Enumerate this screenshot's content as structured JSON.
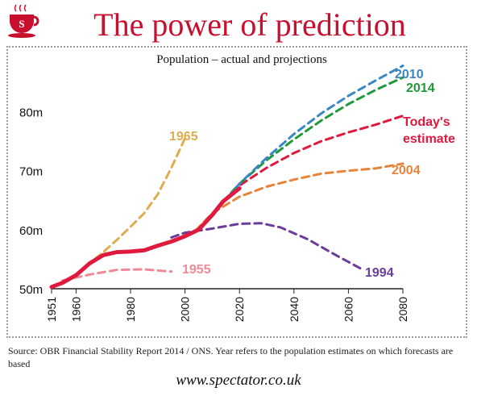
{
  "headline": "The power of prediction",
  "logo_icon": "steaming-cup-spectator-logo",
  "brand_color": "#c8102e",
  "source_note": "Source: OBR Financial Stability Report 2014 / ONS. Year refers to the population estimates on which forecasts are based",
  "footer": "www.spectator.co.uk",
  "chart_data": {
    "type": "line",
    "title": "Population – actual and projections",
    "xlabel": "",
    "ylabel": "",
    "xlim": [
      1951,
      2080
    ],
    "ylim": [
      50,
      88
    ],
    "x_ticks": [
      1951,
      1960,
      1980,
      2000,
      2020,
      2040,
      2060,
      2080
    ],
    "x_tick_labels": [
      "1951",
      "1960",
      "1980",
      "2000",
      "2020",
      "2040",
      "2060",
      "2080"
    ],
    "y_ticks": [
      50,
      60,
      70,
      80
    ],
    "y_tick_labels": [
      "50m",
      "60m",
      "70m",
      "80m"
    ],
    "grid": false,
    "legend": "labels next to lines",
    "series": [
      {
        "name": "1965",
        "color": "#dcae4f",
        "dash": true,
        "x": [
          1960,
          1965,
          1970,
          1975,
          1980,
          1985,
          1990,
          1995,
          2000
        ],
        "y": [
          52.5,
          54.3,
          56.2,
          58.3,
          60.5,
          62.8,
          66.0,
          70.5,
          75.5
        ]
      },
      {
        "name": "1955",
        "color": "#f08a97",
        "dash": true,
        "x": [
          1955,
          1965,
          1975,
          1985,
          1995
        ],
        "y": [
          51.4,
          52.4,
          53.2,
          53.3,
          52.9
        ]
      },
      {
        "name": "1994",
        "color": "#6a3d9a",
        "dash": true,
        "x": [
          1995,
          2000,
          2010,
          2020,
          2028,
          2035,
          2045,
          2055,
          2065
        ],
        "y": [
          58.7,
          59.5,
          60.2,
          61.0,
          61.1,
          60.4,
          58.4,
          55.8,
          53.3
        ]
      },
      {
        "name": "2004",
        "color": "#e8833a",
        "dash": true,
        "x": [
          2004,
          2010,
          2020,
          2030,
          2040,
          2050,
          2060,
          2070,
          2080
        ],
        "y": [
          59.9,
          62.8,
          65.6,
          67.3,
          68.5,
          69.5,
          70.0,
          70.4,
          71.2
        ]
      },
      {
        "name": "Today's estimate",
        "color": "#e0193e",
        "dash": true,
        "x": [
          2014,
          2020,
          2030,
          2040,
          2050,
          2060,
          2070,
          2080
        ],
        "y": [
          64.8,
          67.5,
          70.5,
          73.0,
          75.0,
          76.5,
          77.8,
          79.3
        ]
      },
      {
        "name": "2014",
        "color": "#1f9a3a",
        "dash": true,
        "x": [
          2014,
          2020,
          2030,
          2040,
          2050,
          2060,
          2070,
          2080
        ],
        "y": [
          64.8,
          67.8,
          71.8,
          75.3,
          78.5,
          81.3,
          83.7,
          85.8
        ]
      },
      {
        "name": "2010",
        "color": "#3b87c4",
        "dash": true,
        "x": [
          2010,
          2020,
          2030,
          2040,
          2050,
          2060,
          2070,
          2080
        ],
        "y": [
          62.5,
          67.8,
          72.2,
          76.2,
          79.7,
          82.7,
          85.3,
          87.8
        ]
      },
      {
        "name": "",
        "color": "#e0193e",
        "dash": false,
        "x": [
          1951,
          1955,
          1960,
          1965,
          1970,
          1975,
          1980,
          1985,
          1990,
          1995,
          2000,
          2005,
          2010,
          2014,
          2020
        ],
        "y": [
          50.3,
          51.0,
          52.3,
          54.3,
          55.7,
          56.2,
          56.3,
          56.5,
          57.3,
          58.0,
          58.9,
          60.0,
          62.5,
          64.8,
          67.0
        ]
      }
    ],
    "annotations": [
      {
        "text": "1965",
        "color": "#dcae4f"
      },
      {
        "text": "1955",
        "color": "#f08a97"
      },
      {
        "text": "1994",
        "color": "#6a3d9a"
      },
      {
        "text": "2004",
        "color": "#e8833a"
      },
      {
        "text": "Today's",
        "color": "#e0193e"
      },
      {
        "text": "estimate",
        "color": "#e0193e"
      },
      {
        "text": "2014",
        "color": "#1f9a3a"
      },
      {
        "text": "2010",
        "color": "#3b87c4"
      }
    ]
  }
}
